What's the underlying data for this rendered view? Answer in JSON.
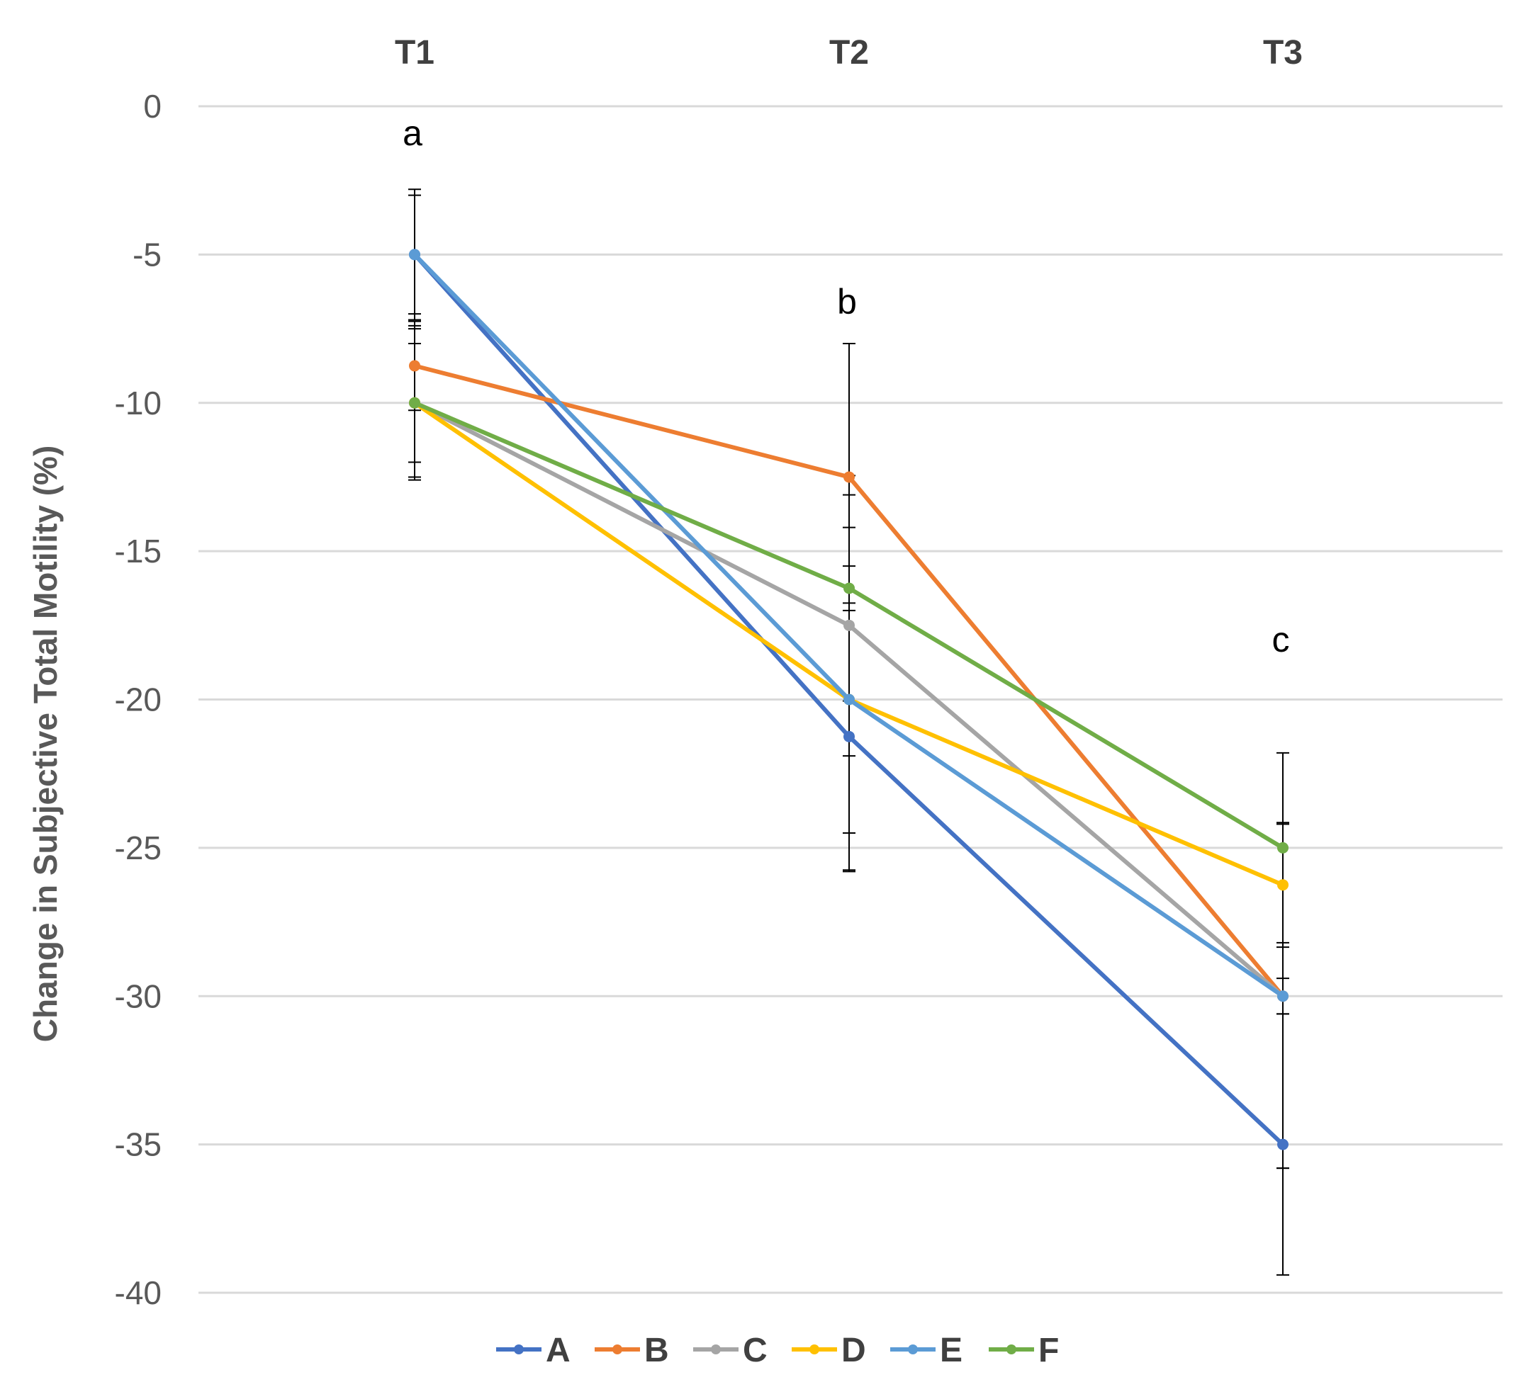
{
  "chart_data": {
    "type": "line",
    "title": "",
    "xlabel": "",
    "ylabel": "Change in Subjective Total Motility (%)",
    "categories": [
      "T1",
      "T2",
      "T3"
    ],
    "ylim": [
      -40,
      0
    ],
    "yticks": [
      0,
      -5,
      -10,
      -15,
      -20,
      -25,
      -30,
      -35,
      -40
    ],
    "ytick_labels": [
      "0",
      "-5",
      "-10",
      "-15",
      "-20",
      "-25",
      "-30",
      "-35",
      "-40"
    ],
    "grid": true,
    "legend_position": "bottom",
    "significance_letters": [
      "a",
      "b",
      "c"
    ],
    "series": [
      {
        "name": "A",
        "color": "#4472C4",
        "values": [
          -5,
          -21.25,
          -35
        ],
        "errors": [
          2.0,
          4.5,
          4.4
        ]
      },
      {
        "name": "B",
        "color": "#ED7D31",
        "values": [
          -8.75,
          -12.5,
          -30
        ],
        "errors": [
          1.5,
          4.5,
          0.6
        ]
      },
      {
        "name": "C",
        "color": "#A5A5A5",
        "values": [
          -10,
          -17.5,
          -30
        ],
        "errors": [
          2.5,
          4.4,
          5.8
        ]
      },
      {
        "name": "D",
        "color": "#FFC000",
        "values": [
          -10,
          -20,
          -26.25
        ],
        "errors": [
          2.6,
          4.5,
          2.1
        ]
      },
      {
        "name": "E",
        "color": "#5B9BD5",
        "values": [
          -5,
          -20,
          -30
        ],
        "errors": [
          2.2,
          5.8,
          5.8
        ]
      },
      {
        "name": "F",
        "color": "#70AD47",
        "values": [
          -10,
          -16.25,
          -25
        ],
        "errors": [
          2.0,
          3.8,
          3.2
        ]
      }
    ]
  }
}
